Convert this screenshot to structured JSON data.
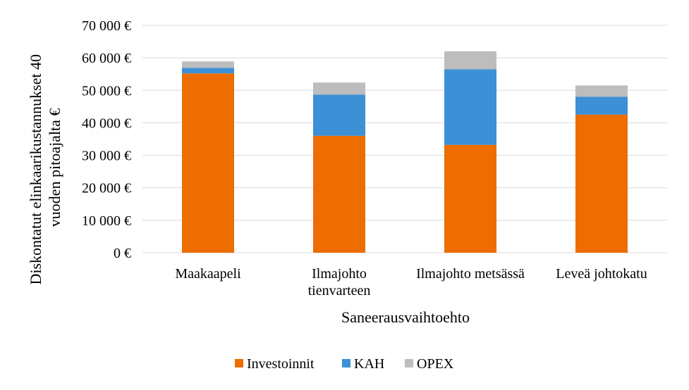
{
  "chart_data": {
    "type": "bar",
    "stacked": true,
    "title": "",
    "xlabel": "Saneerausvaihtoehto",
    "ylabel_lines": [
      "Diskontatut elinkaarikustannukset 40",
      "vuoden pitoajalta €"
    ],
    "ylim": [
      0,
      70000
    ],
    "y_ticks": [
      {
        "value": 0,
        "label": "0 €"
      },
      {
        "value": 10000,
        "label": "10 000 €"
      },
      {
        "value": 20000,
        "label": "20 000 €"
      },
      {
        "value": 30000,
        "label": "30 000 €"
      },
      {
        "value": 40000,
        "label": "40 000 €"
      },
      {
        "value": 50000,
        "label": "50 000 €"
      },
      {
        "value": 60000,
        "label": "60 000 €"
      },
      {
        "value": 70000,
        "label": "70 000 €"
      }
    ],
    "grid": true,
    "legend_position": "bottom",
    "categories": [
      {
        "name": "Maakaapeli",
        "lines": [
          "Maakaapeli"
        ]
      },
      {
        "name": "Ilmajohto tienvarteen",
        "lines": [
          "Ilmajohto",
          "tienvarteen"
        ]
      },
      {
        "name": "Ilmajohto metsässä",
        "lines": [
          "Ilmajohto metsässä"
        ]
      },
      {
        "name": "Leveä johtokatu",
        "lines": [
          "Leveä johtokatu"
        ]
      }
    ],
    "series": [
      {
        "name": "Investoinnit",
        "color": "#ED6D00",
        "values": [
          55200,
          36000,
          33200,
          42500
        ]
      },
      {
        "name": "KAH",
        "color": "#3D8FD6",
        "values": [
          1700,
          12700,
          23300,
          5500
        ]
      },
      {
        "name": "OPEX",
        "color": "#BDBDBD",
        "values": [
          2000,
          3700,
          5500,
          3500
        ]
      }
    ]
  }
}
